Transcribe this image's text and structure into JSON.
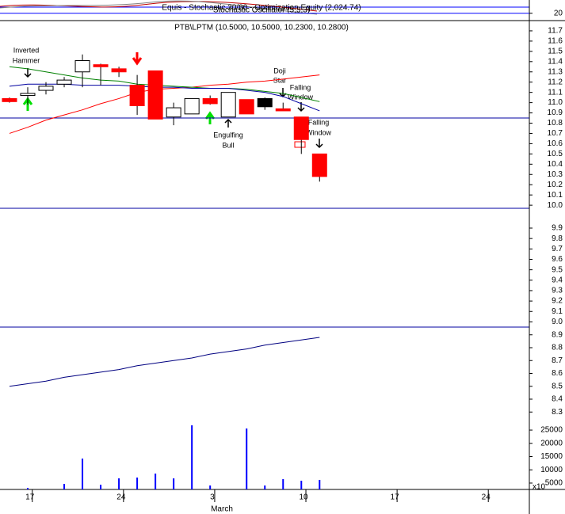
{
  "chart_data": [
    {
      "type": "line",
      "title": "Equis - Stochastic 20/80 - Optimization Equity (2,024.74)",
      "subtitle": "Stochastic Oscillator (5,3,3)",
      "ylim": [
        15,
        29
      ],
      "yticks": [
        20
      ],
      "grid": true,
      "series": []
    },
    {
      "type": "candlestick",
      "title": "PTB\\LPTM (10.5000, 10.5000, 10.2300, 10.2800)",
      "ylim": [
        9.97,
        11.8
      ],
      "yticks": [
        11.7,
        11.6,
        11.5,
        11.4,
        11.3,
        11.2,
        11.1,
        {
          "value": 11.0,
          "label": "11.0"
        },
        10.9,
        10.8,
        10.7,
        10.6,
        10.5,
        10.4,
        10.3,
        10.2,
        10.1,
        {
          "value": 10.0,
          "label": "10.0"
        }
      ],
      "open": [
        11.04,
        11.07,
        11.12,
        11.18,
        11.3,
        11.37,
        11.33,
        11.17,
        11.31,
        10.86,
        10.89,
        11.04,
        10.86,
        11.03,
        11.04,
        10.94,
        10.86,
        10.5
      ],
      "high": [
        11.05,
        11.15,
        11.2,
        11.25,
        11.47,
        11.38,
        11.35,
        11.27,
        11.31,
        11.0,
        11.04,
        11.07,
        11.1,
        11.03,
        11.05,
        11.0,
        10.86,
        10.5
      ],
      "low": [
        11.0,
        10.98,
        11.08,
        11.15,
        11.15,
        11.17,
        11.25,
        10.88,
        10.84,
        10.78,
        10.89,
        10.98,
        10.86,
        10.89,
        10.93,
        10.92,
        10.5,
        10.23
      ],
      "close": [
        11.01,
        11.09,
        11.16,
        11.22,
        11.41,
        11.35,
        11.3,
        10.97,
        10.84,
        10.95,
        11.04,
        10.99,
        11.1,
        10.89,
        10.96,
        10.92,
        10.64,
        10.28
      ],
      "colors": [
        "#ff0000",
        "#ffffff",
        "#ffffff",
        "#ffffff",
        "#ffffff",
        "#ff0000",
        "#ff0000",
        "#ff0000",
        "#ff0000",
        "#ffffff",
        "#ffffff",
        "#ff0000",
        "#ffffff",
        "#ff0000",
        "#000000",
        "#ff0000",
        "#ff0000",
        "#ff0000"
      ],
      "series": [
        {
          "color": "#ff0000",
          "values": [
            10.7,
            10.76,
            10.83,
            10.88,
            10.93,
            10.99,
            11.04,
            11.1,
            11.13,
            11.14,
            11.15,
            11.17,
            11.18,
            11.2,
            11.21,
            11.23,
            11.25,
            11.27
          ]
        },
        {
          "color": "#008000",
          "values": [
            11.35,
            11.33,
            11.3,
            11.27,
            11.24,
            11.22,
            11.21,
            11.18,
            11.17,
            11.16,
            11.15,
            11.14,
            11.14,
            11.13,
            11.11,
            11.09,
            11.05,
            11.01
          ]
        },
        {
          "color": "#0000a0",
          "values": [
            11.16,
            11.18,
            11.18,
            11.18,
            11.17,
            11.17,
            11.17,
            11.16,
            11.15,
            11.15,
            11.14,
            11.14,
            11.14,
            11.12,
            11.1,
            11.06,
            10.99,
            10.92
          ]
        }
      ],
      "hlines": [
        10.85
      ],
      "annotations": [
        {
          "lines": [
            "Inverted",
            "Hammer"
          ]
        },
        {
          "lines": [
            "Doji",
            "Star"
          ]
        },
        {
          "lines": [
            "Falling",
            "Window"
          ]
        },
        {
          "lines": [
            "Falling",
            "Window"
          ]
        },
        {
          "lines": [
            "Engulfing",
            "Bull"
          ]
        }
      ]
    },
    {
      "type": "line",
      "ylim": [
        8.95,
        10.09
      ],
      "yticks": [
        9.9,
        9.8,
        9.7,
        9.6,
        9.5,
        9.4,
        9.3,
        9.2,
        9.1,
        {
          "value": 9.0,
          "label": "9.0"
        }
      ],
      "series": []
    },
    {
      "type": "line",
      "ylim": [
        8.24,
        8.96
      ],
      "yticks": [
        8.9,
        8.8,
        8.7,
        8.6,
        8.5,
        8.4,
        8.3
      ],
      "series": [
        {
          "color": "#000080",
          "values": [
            8.5,
            8.52,
            8.54,
            8.57,
            8.59,
            8.61,
            8.63,
            8.66,
            8.68,
            8.7,
            8.72,
            8.75,
            8.77,
            8.79,
            8.82,
            8.84,
            8.86,
            8.88
          ]
        }
      ]
    },
    {
      "type": "bar",
      "ylim": [
        2600,
        28900
      ],
      "yticks": [
        25000,
        20000,
        15000,
        10000,
        5000
      ],
      "ylabel": "x10",
      "color": "#0000ff",
      "values": [
        null,
        3200,
        null,
        4700,
        14250,
        4400,
        6800,
        7100,
        8600,
        6800,
        26800,
        4100,
        null,
        25600,
        4100,
        6500,
        5900,
        6200
      ],
      "xlim": [
        -0.52,
        28.5
      ],
      "xticks": [
        {
          "value": 1.25,
          "label": "17"
        },
        {
          "value": 6.25,
          "label": "24"
        },
        {
          "value": 11.25,
          "label": "3"
        },
        {
          "value": 16.25,
          "label": "10"
        },
        {
          "value": 21.25,
          "label": "17"
        },
        {
          "value": 26.25,
          "label": "24"
        }
      ],
      "xlabel": "March"
    }
  ]
}
